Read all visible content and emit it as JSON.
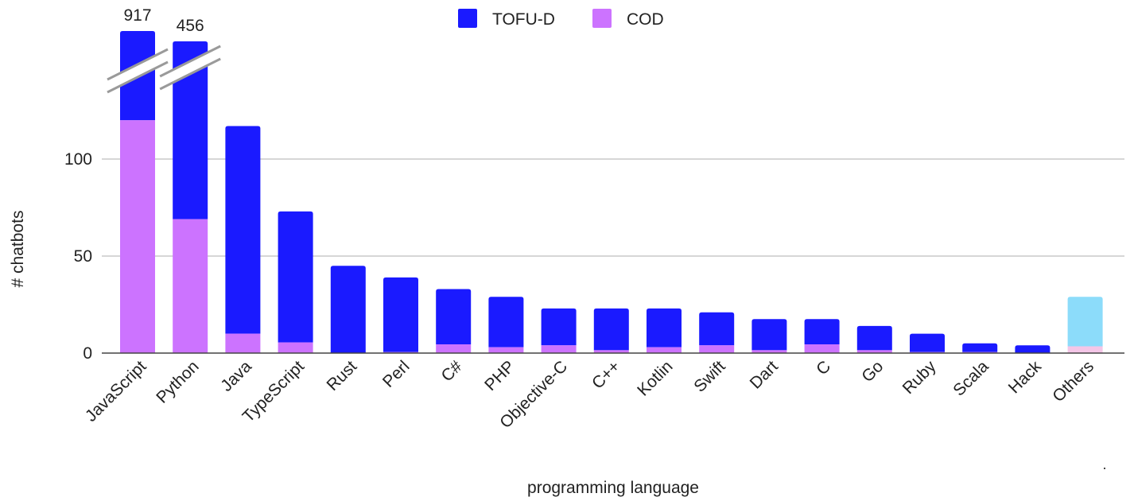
{
  "chart_data": {
    "type": "bar",
    "stacked": true,
    "xlabel": "programming language",
    "ylabel": "# chatbots",
    "ylim": [
      0,
      140
    ],
    "yticks": [
      0,
      50,
      100
    ],
    "grid": true,
    "legend_position": "top-center",
    "axis_break": true,
    "categories": [
      "JavaScript",
      "Python",
      "Java",
      "TypeScript",
      "Rust",
      "Perl",
      "C#",
      "PHP",
      "Objective-C",
      "C++",
      "Kotlin",
      "Swift",
      "Dart",
      "C",
      "Go",
      "Ruby",
      "Scala",
      "Hack",
      "Others"
    ],
    "series": [
      {
        "name": "COD",
        "color": "#cc73ff",
        "values": [
          120,
          69,
          10,
          5.5,
          0,
          0.5,
          4.5,
          3,
          4,
          1.5,
          3,
          4,
          1.5,
          4.5,
          1.5,
          0.5,
          0.5,
          0,
          3.5
        ]
      },
      {
        "name": "TOFU-D",
        "color": "#1a1aff",
        "values": [
          797,
          387,
          107,
          67.5,
          45,
          38.5,
          28.5,
          26,
          19,
          21.5,
          20,
          17,
          16,
          13,
          12.5,
          9.5,
          4.5,
          4,
          25.5
        ]
      }
    ],
    "others_colors": {
      "COD": "#f4c6e7",
      "TOFU-D": "#8cdcfa"
    },
    "broken_totals": {
      "JavaScript": "917",
      "Python": "456"
    }
  }
}
